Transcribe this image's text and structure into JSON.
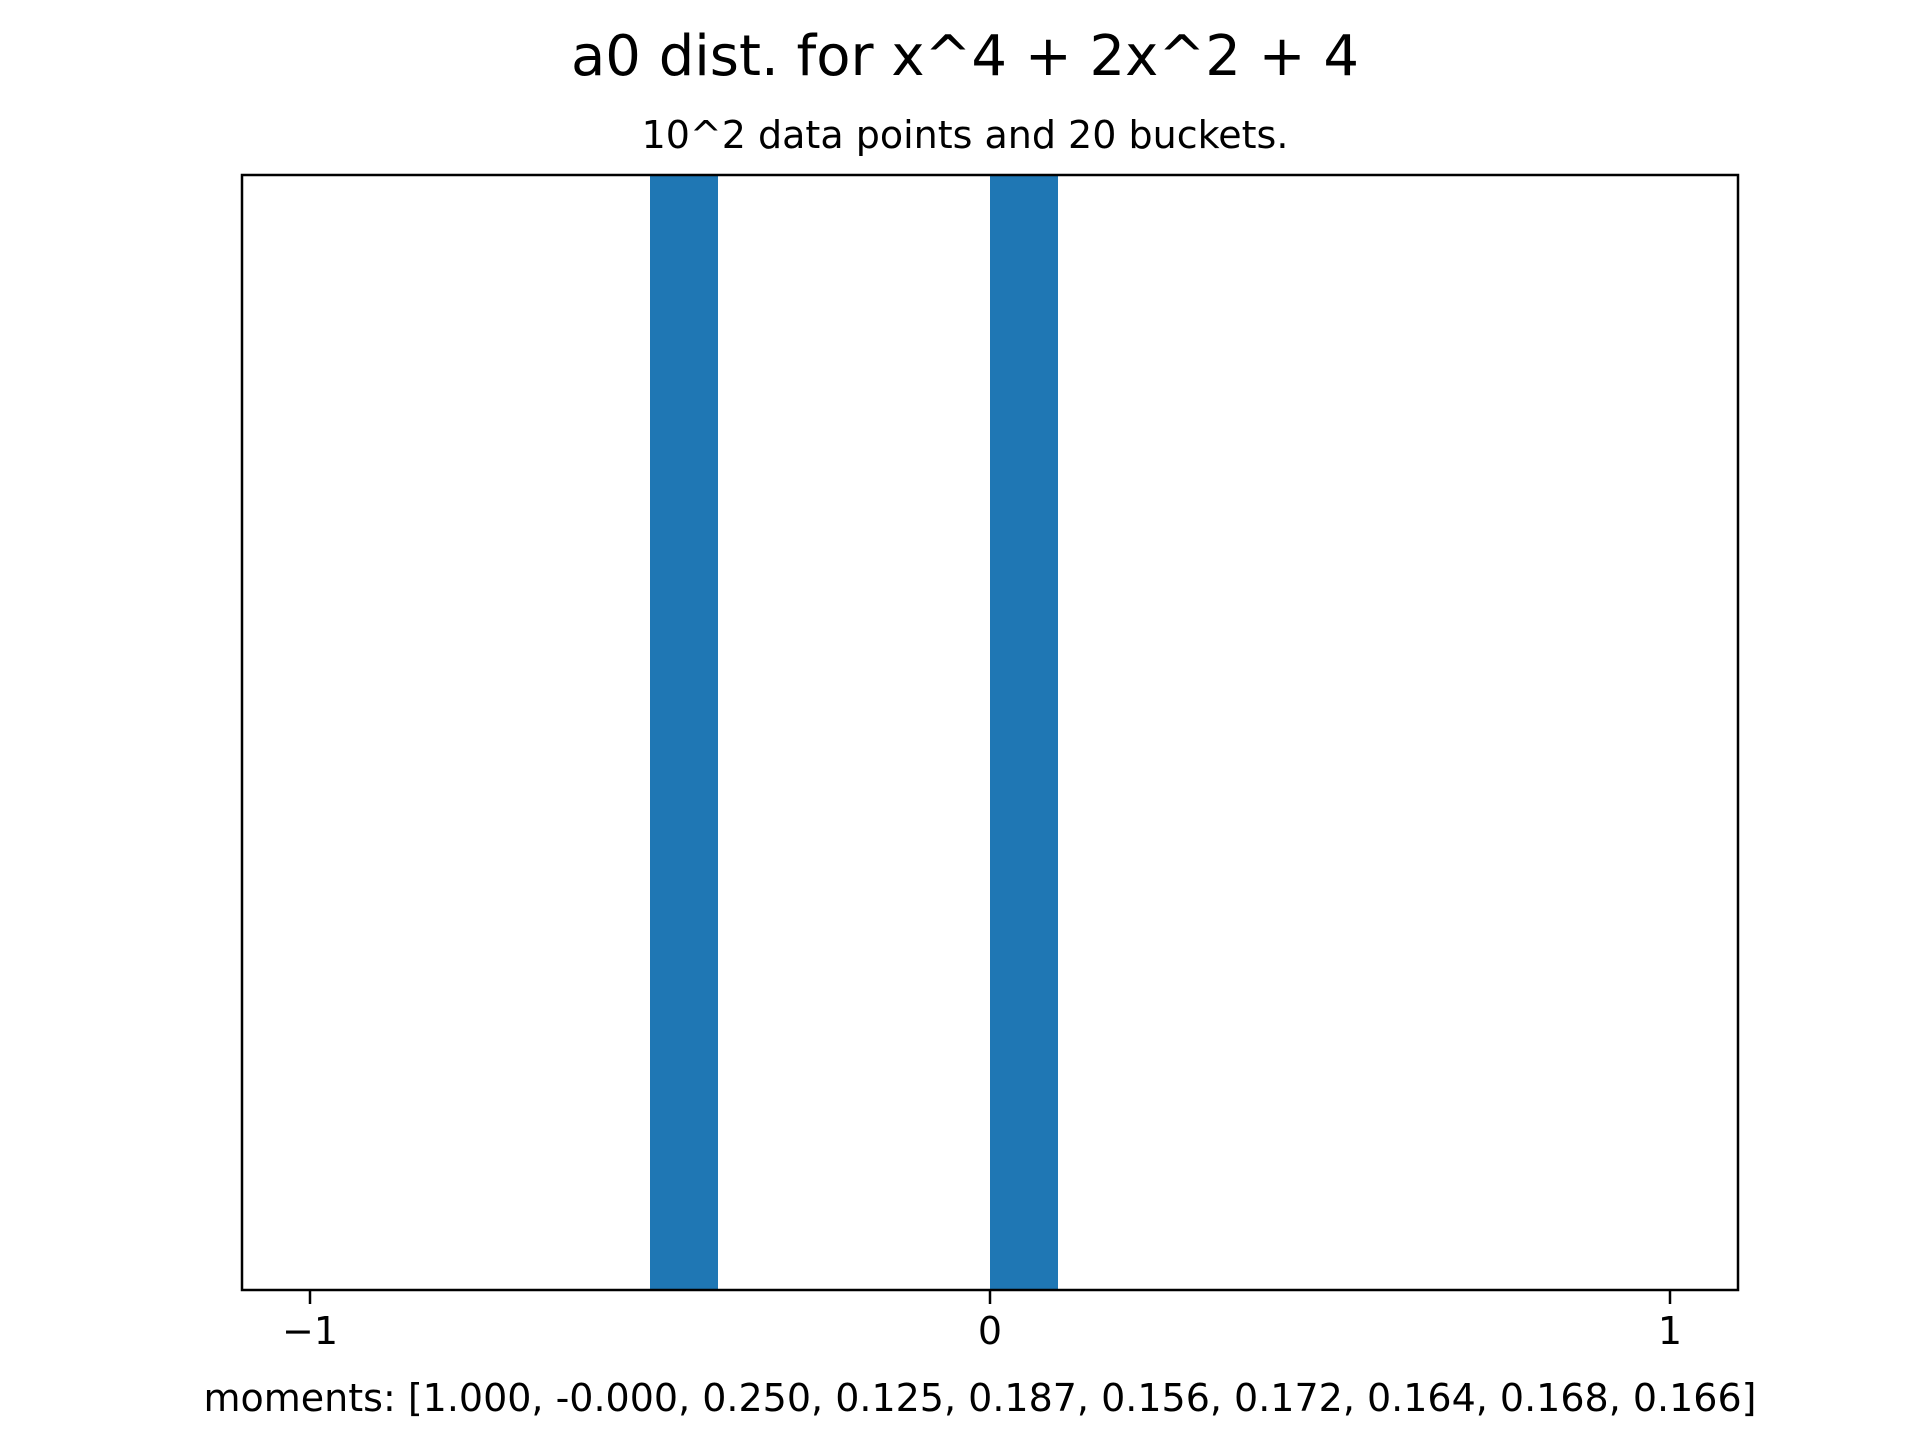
{
  "chart_data": {
    "type": "bar",
    "title": "a0 dist. for x^4 + 2x^2 + 4",
    "subtitle": "10^2 data points and 20 buckets.",
    "xlabel": "moments: [1.000, -0.000, 0.250, 0.125, 0.187, 0.156, 0.172, 0.164, 0.168, 0.166]",
    "ylabel": "",
    "xlim": [
      -1.1,
      1.1
    ],
    "ylim": [
      0,
      1
    ],
    "xticks": [
      -1,
      0,
      1
    ],
    "xtick_labels": [
      "−1",
      "0",
      "1"
    ],
    "bars": [
      {
        "x0": -0.5,
        "x1": -0.4,
        "value": 1
      },
      {
        "x0": 0.0,
        "x1": 0.1,
        "value": 1
      }
    ],
    "grid": false,
    "legend": "none",
    "bar_color": "#1f77b4"
  }
}
